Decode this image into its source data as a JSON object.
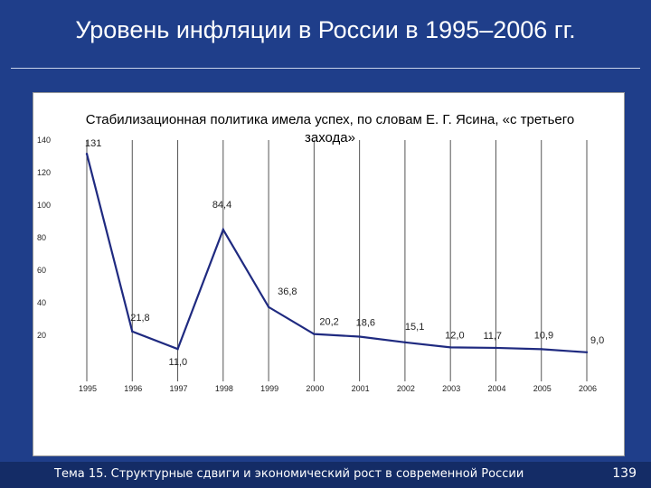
{
  "slide": {
    "title": "Уровень инфляции в России в 1995–2006 гг.",
    "footer_text": "Тема 15. Структурные сдвиги и экономический рост в современной России",
    "page_number": "139"
  },
  "chart_data": {
    "type": "line",
    "title": "Стабилизационная политика имела успех, по словам Е. Г. Ясина, «с третьего захода»",
    "xlabel": "",
    "ylabel": "",
    "x": [
      "1995",
      "1996",
      "1997",
      "1998",
      "1999",
      "2000",
      "2001",
      "2002",
      "2003",
      "2004",
      "2005",
      "2006"
    ],
    "y_ticks": [
      "20",
      "40",
      "60",
      "80",
      "100",
      "120",
      "140"
    ],
    "ylim": [
      0,
      140
    ],
    "grid": "vertical",
    "series": [
      {
        "name": "",
        "values": [
          131,
          21.8,
          11.0,
          84.4,
          36.8,
          20.2,
          18.6,
          15.1,
          12.0,
          11.7,
          10.9,
          9.0
        ],
        "labels": [
          "131",
          "21,8",
          "11,0",
          "84,4",
          "36,8",
          "20,2",
          "18,6",
          "15,1",
          "12,0",
          "11,7",
          "10,9",
          "9,0"
        ]
      }
    ],
    "colors": {
      "line": "#1f2a80",
      "grid": "#555555",
      "text": "#222222"
    }
  }
}
